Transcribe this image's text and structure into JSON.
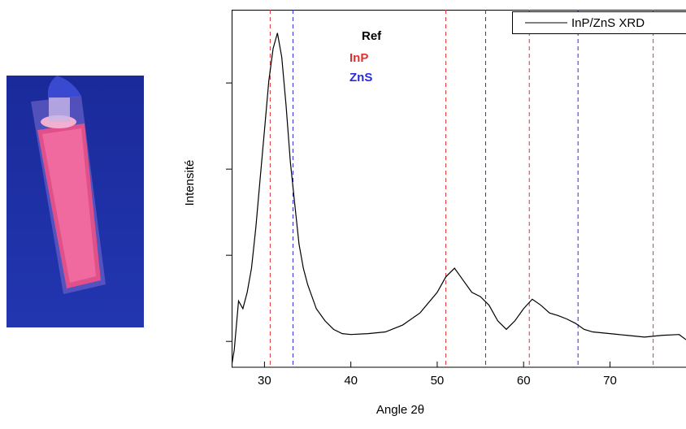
{
  "chart_data": {
    "type": "line",
    "xlabel": "Angle 2θ",
    "ylabel": "Intensité",
    "xlim": [
      26.2,
      78.8
    ],
    "xticks": [
      30,
      40,
      50,
      60,
      70
    ],
    "ylim": [
      -0.3,
      3.85
    ],
    "yticks": [
      0,
      1,
      2,
      3
    ],
    "legend": "top-right",
    "annotation": "Ref",
    "reference_lines": [
      {
        "name": "InP",
        "color": "#e03030",
        "x": [
          30.66,
          51.0,
          60.66,
          75.0
        ]
      },
      {
        "name": "ZnS",
        "color": "#2a2ae0",
        "x": [
          33.3,
          55.6,
          66.3
        ]
      }
    ],
    "series": [
      {
        "name": "InP/ZnS XRD",
        "color": "#000000",
        "x": [
          26.2,
          26.5,
          27,
          27.5,
          28,
          28.5,
          29,
          29.5,
          30,
          30.5,
          31,
          31.5,
          32,
          32.5,
          33,
          33.5,
          34,
          34.5,
          35,
          36,
          37,
          38,
          39,
          40,
          42,
          44,
          46,
          48,
          50,
          51,
          52,
          53,
          54,
          55,
          56,
          57,
          58,
          59,
          60,
          61,
          62,
          63,
          64,
          65,
          66,
          67,
          68,
          70,
          72,
          74,
          76,
          78,
          78.8
        ],
        "values": [
          -0.28,
          -0.1,
          0.47,
          0.38,
          0.57,
          0.85,
          1.32,
          1.89,
          2.45,
          3.02,
          3.4,
          3.58,
          3.3,
          2.74,
          2.08,
          1.6,
          1.13,
          0.85,
          0.66,
          0.38,
          0.24,
          0.14,
          0.09,
          0.08,
          0.09,
          0.11,
          0.19,
          0.33,
          0.57,
          0.75,
          0.85,
          0.71,
          0.57,
          0.52,
          0.42,
          0.24,
          0.14,
          0.24,
          0.38,
          0.49,
          0.42,
          0.33,
          0.3,
          0.26,
          0.21,
          0.14,
          0.11,
          0.09,
          0.07,
          0.05,
          0.07,
          0.08,
          0.02
        ]
      }
    ]
  }
}
